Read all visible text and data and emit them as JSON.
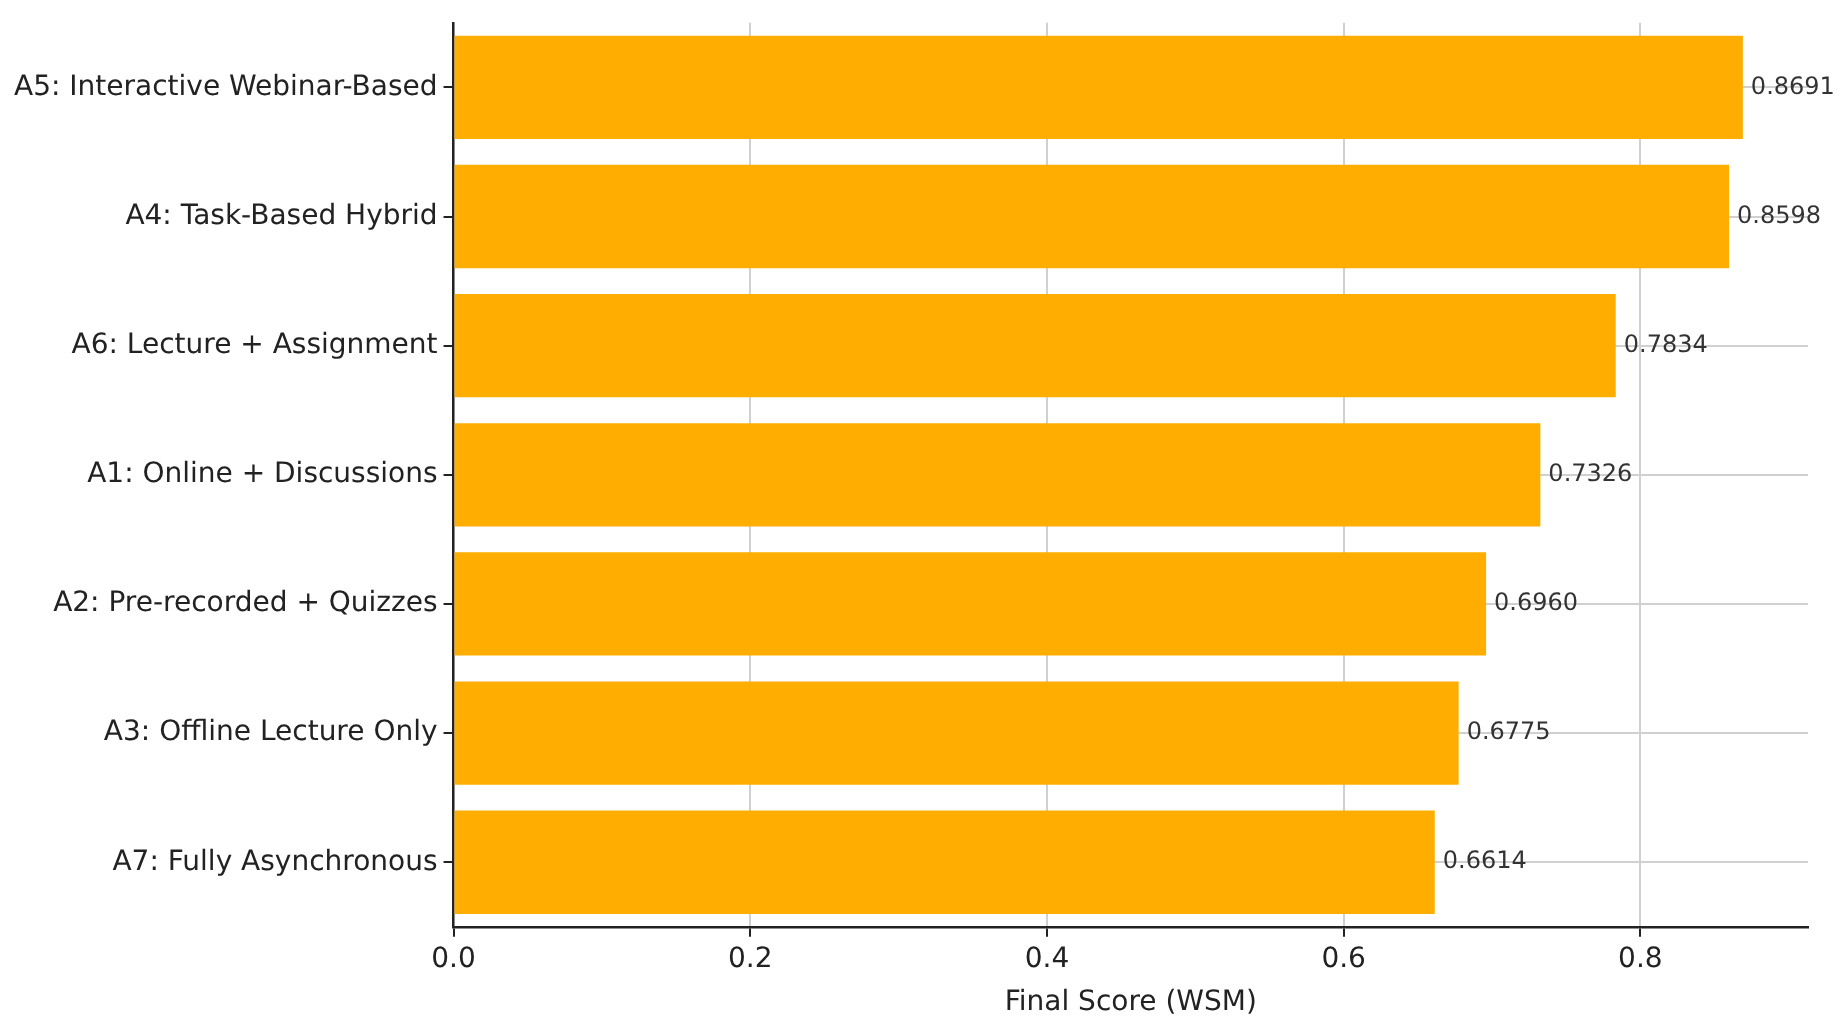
{
  "chart_data": {
    "type": "bar",
    "orientation": "horizontal",
    "xlabel": "Final Score (WSM)",
    "categories": [
      "A5: Interactive Webinar-Based",
      "A4: Task-Based Hybrid",
      "A6: Lecture + Assignment",
      "A1: Online + Discussions",
      "A2: Pre-recorded + Quizzes",
      "A3: Offline Lecture Only",
      "A7: Fully Asynchronous"
    ],
    "values": [
      0.8691,
      0.8598,
      0.7834,
      0.7326,
      0.696,
      0.6775,
      0.6614
    ],
    "value_labels": [
      "0.8691",
      "0.8598",
      "0.7834",
      "0.7326",
      "0.6960",
      "0.6775",
      "0.6614"
    ],
    "color": "#ffae00",
    "xlim": [
      0,
      0.913
    ],
    "xticks": [
      {
        "value": 0,
        "label": "0.0"
      },
      0.2,
      0.4,
      0.6,
      0.8
    ],
    "grid": true,
    "legend": false
  }
}
